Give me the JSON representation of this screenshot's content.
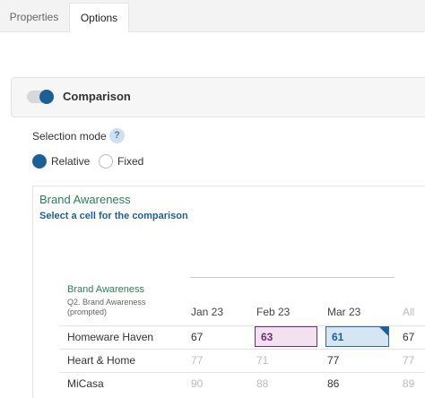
{
  "tabs": [
    "Properties",
    "Options"
  ],
  "panel": {
    "title": "Comparison"
  },
  "selection_mode": {
    "label": "Selection mode",
    "help": "?",
    "options": [
      "Relative",
      "Fixed"
    ]
  },
  "card": {
    "title": "Brand Awareness",
    "subtitle": "Select a cell for the comparison"
  },
  "table": {
    "title": "Brand Awareness",
    "question": "Q2. Brand Awareness (prompted)",
    "columns": [
      "Jan 23",
      "Feb 23",
      "Mar 23",
      "All"
    ],
    "rows": [
      {
        "label": "Homeware Haven",
        "values": [
          67,
          63,
          61,
          67
        ]
      },
      {
        "label": "Heart & Home",
        "values": [
          77,
          71,
          77,
          77
        ]
      },
      {
        "label": "MiCasa",
        "values": [
          90,
          88,
          86,
          89
        ]
      }
    ]
  }
}
